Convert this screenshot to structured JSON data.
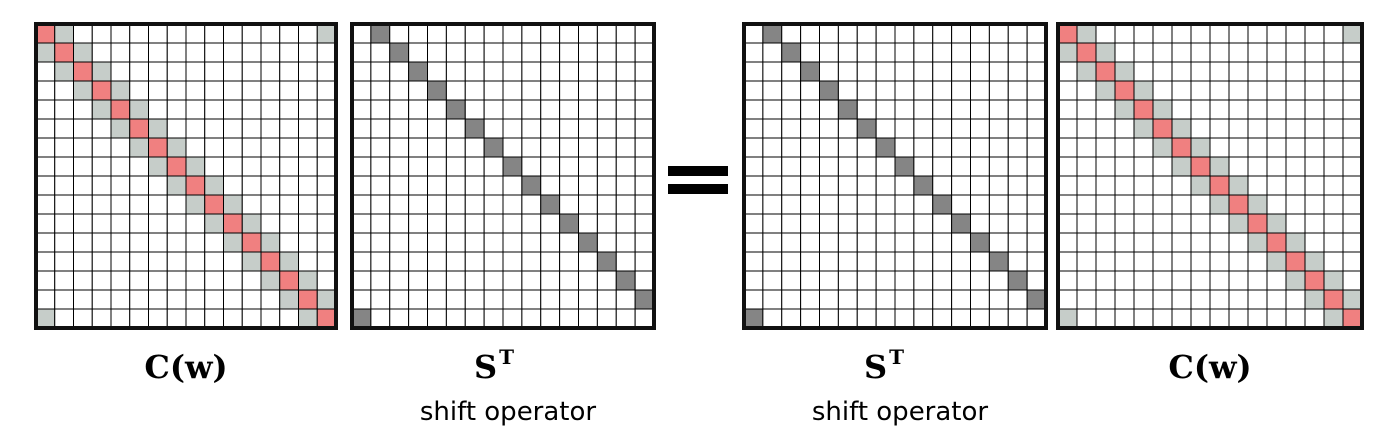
{
  "grid_size": 16,
  "colors": {
    "red": "#f08080",
    "gray": "#c6cdc9",
    "dark": "#858585",
    "cell_border": "#000000",
    "frame": "#111111"
  },
  "matrices": [
    {
      "id": "matrix-c-left",
      "kind": "circulant",
      "title": "C(",
      "title_w": "w",
      "title_close": ")",
      "superscript": "",
      "subtitle": ""
    },
    {
      "id": "matrix-s-left",
      "kind": "shift",
      "title": "S",
      "title_w": "",
      "title_close": "",
      "superscript": "T",
      "subtitle": "shift operator"
    },
    {
      "id": "matrix-s-right",
      "kind": "shift",
      "title": "S",
      "title_w": "",
      "title_close": "",
      "superscript": "T",
      "subtitle": "shift operator"
    },
    {
      "id": "matrix-c-right",
      "kind": "circulant",
      "title": "C(",
      "title_w": "w",
      "title_close": ")",
      "superscript": "",
      "subtitle": ""
    }
  ]
}
